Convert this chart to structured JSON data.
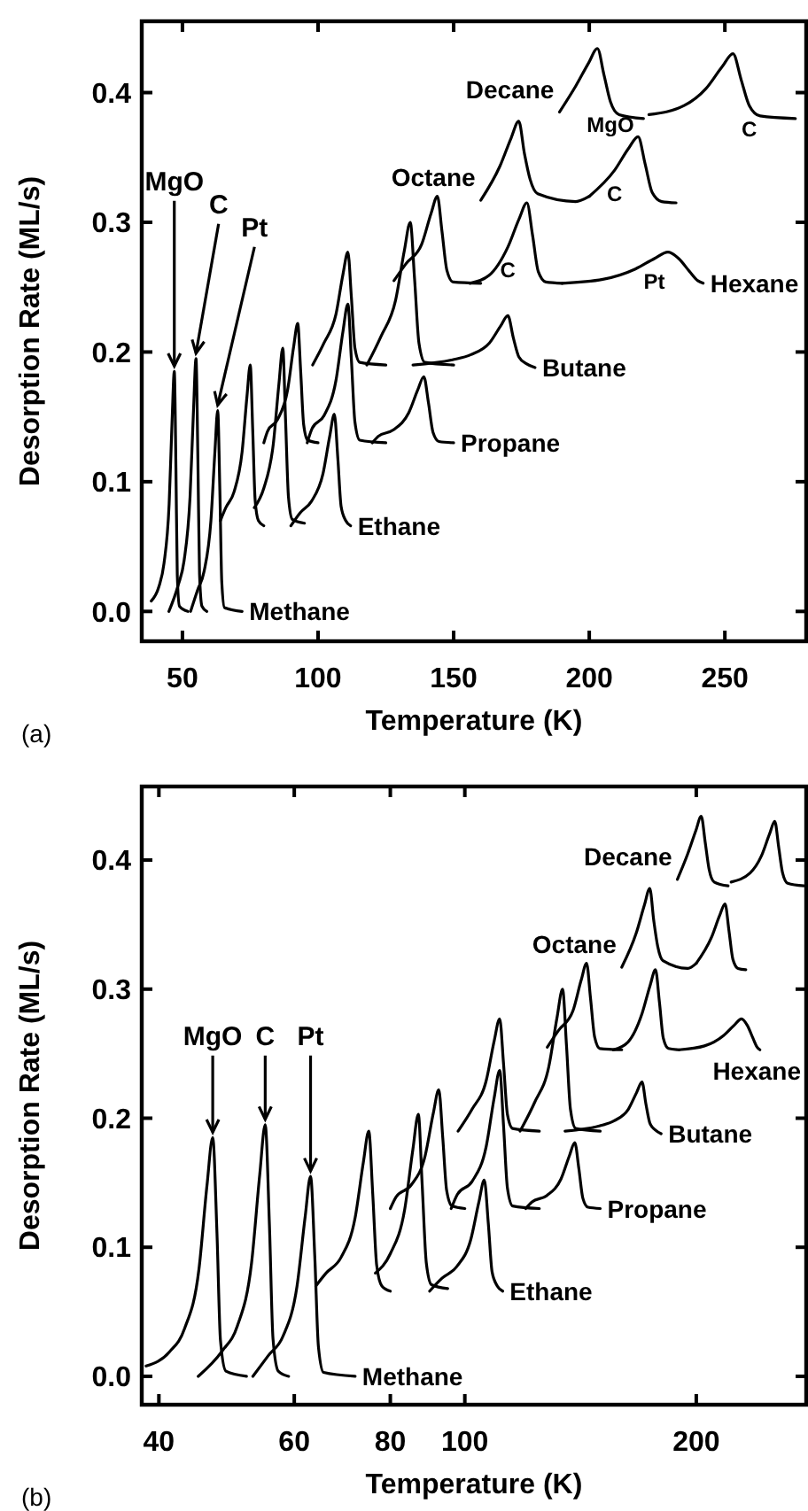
{
  "chart_data": [
    {
      "type": "line",
      "xlabel": "Temperature (K)",
      "ylabel": "Desorption Rate (ML/s)",
      "xlim": [
        35,
        280
      ],
      "xticks": [
        50,
        100,
        150,
        200,
        250
      ],
      "ylim": [
        -0.023,
        0.455
      ],
      "yticks": [
        {
          "value": 0,
          "label": "0.0"
        },
        0.1,
        0.2,
        0.3,
        0.4
      ],
      "annotations": [
        {
          "text": "MgO",
          "x": 47,
          "y": 0.185
        },
        {
          "text": "C",
          "x": 55,
          "y": 0.195
        },
        {
          "text": "Pt",
          "x": 63,
          "y": 0.155
        },
        {
          "text": "MgO",
          "x": 207.8,
          "y": 0.393
        },
        {
          "text": "C",
          "x": 259,
          "y": 0.39
        },
        {
          "text": "C",
          "x": 209.3,
          "y": 0.34
        },
        {
          "text": "C",
          "x": 170,
          "y": 0.281
        },
        {
          "text": "Pt",
          "x": 224,
          "y": 0.272
        },
        "(a)"
      ],
      "series": [
        {
          "color": "#000000",
          "x": [
            38.5,
            41.3,
            43.2,
            45.1,
            46.2,
            47,
            47.6,
            48.1,
            48.9,
            52
          ],
          "values": [
            0.008,
            0.019,
            0.037,
            0.083,
            0.148,
            0.185,
            0.111,
            0.028,
            0.004,
            0
          ]
        },
        {
          "color": "#000000",
          "x": [
            45,
            48.4,
            50.6,
            52.8,
            54.1,
            55,
            55.7,
            56.3,
            57.2,
            59
          ],
          "values": [
            0,
            0.02,
            0.039,
            0.088,
            0.156,
            0.195,
            0.117,
            0.029,
            0.004,
            0
          ]
        },
        {
          "name": "Methane",
          "color": "#000000",
          "x": [
            53,
            55.5,
            58,
            60.5,
            62,
            63,
            63.8,
            64.5,
            65.5,
            72
          ],
          "values": [
            0,
            0.016,
            0.031,
            0.07,
            0.124,
            0.155,
            0.093,
            0.023,
            0.003,
            0
          ]
        },
        {
          "color": "#000000",
          "x": [
            64,
            66,
            69,
            72,
            73.8,
            75,
            75.9,
            76.8,
            78,
            80
          ],
          "values": [
            0.07,
            0.08,
            0.092,
            0.123,
            0.166,
            0.19,
            0.141,
            0.086,
            0.07,
            0.066
          ]
        },
        {
          "color": "#000000",
          "x": [
            76.5,
            80,
            83.5,
            85.6,
            87,
            88,
            89.1,
            90.5,
            95
          ],
          "values": [
            0.08,
            0.095,
            0.129,
            0.176,
            0.203,
            0.149,
            0.088,
            0.071,
            0.068
          ]
        },
        {
          "name": "Ethane",
          "color": "#000000",
          "x": [
            90,
            93.4,
            97.6,
            101.8,
            104.3,
            106,
            107.3,
            108.5,
            110.2,
            112
          ],
          "values": [
            0.066,
            0.076,
            0.085,
            0.106,
            0.135,
            0.152,
            0.118,
            0.081,
            0.07,
            0.066
          ]
        },
        {
          "color": "#000000",
          "x": [
            80,
            81.4,
            85.1,
            88.8,
            91,
            92.5,
            93.6,
            94.7,
            96.2,
            100
          ],
          "values": [
            0.13,
            0.139,
            0.148,
            0.171,
            0.204,
            0.222,
            0.185,
            0.144,
            0.132,
            0.13
          ]
        },
        {
          "color": "#000000",
          "x": [
            96,
            97.8,
            102.2,
            106.6,
            109.2,
            111,
            112.3,
            113.6,
            115.4,
            125
          ],
          "values": [
            0.13,
            0.141,
            0.151,
            0.178,
            0.216,
            0.237,
            0.194,
            0.146,
            0.132,
            0.13
          ]
        },
        {
          "name": "Propane",
          "color": "#000000",
          "x": [
            120,
            122.2,
            127.8,
            133.4,
            136.8,
            139,
            140.7,
            142.4,
            144.6,
            150
          ],
          "values": [
            0.13,
            0.135,
            0.14,
            0.153,
            0.171,
            0.181,
            0.161,
            0.138,
            0.131,
            0.13
          ]
        },
        {
          "color": "#000000",
          "x": [
            98,
            102.2,
            106.6,
            109.2,
            111,
            112.3,
            113.6,
            115.4,
            125
          ],
          "values": [
            0.19,
            0.207,
            0.229,
            0.26,
            0.277,
            0.242,
            0.203,
            0.192,
            0.19
          ]
        },
        {
          "color": "#000000",
          "x": [
            118,
            123.2,
            128.6,
            131.8,
            134,
            135.6,
            137.2,
            139.4,
            150
          ],
          "values": [
            0.19,
            0.212,
            0.24,
            0.278,
            0.3,
            0.256,
            0.207,
            0.192,
            0.19
          ]
        },
        {
          "name": "Butane",
          "color": "#000000",
          "x": [
            135,
            149.6,
            156.4,
            163.2,
            167.3,
            170,
            172,
            174.1,
            176.8,
            180
          ],
          "values": [
            0.19,
            0.194,
            0.198,
            0.207,
            0.22,
            0.228,
            0.211,
            0.196,
            0.191,
            0.188
          ]
        },
        {
          "color": "#000000",
          "x": [
            128,
            132.4,
            138.2,
            141.7,
            144,
            145.7,
            147.5,
            149.8,
            160
          ],
          "values": [
            0.255,
            0.268,
            0.283,
            0.307,
            0.32,
            0.293,
            0.263,
            0.254,
            0.253
          ]
        },
        {
          "color": "#000000",
          "x": [
            156,
            163,
            170,
            174.2,
            177,
            179.1,
            181.2,
            184,
            190
          ],
          "values": [
            0.253,
            0.259,
            0.281,
            0.303,
            0.315,
            0.29,
            0.262,
            0.254,
            0.253
          ]
        },
        {
          "name": "Hexane",
          "color": "#000000",
          "x": [
            190,
            205,
            217,
            224,
            229,
            233,
            237,
            240,
            242
          ],
          "values": [
            0.253,
            0.256,
            0.264,
            0.272,
            0.277,
            0.272,
            0.262,
            0.255,
            0.253
          ]
        },
        {
          "name": "Octane",
          "color": "#000000",
          "x": [
            160,
            167,
            171.2,
            174,
            176.1,
            178.2,
            181,
            195,
            200
          ],
          "values": [
            0.317,
            0.343,
            0.365,
            0.378,
            0.353,
            0.333,
            0.322,
            0.316,
            0.32
          ]
        },
        {
          "color": "#000000",
          "x": [
            200,
            209.3,
            214.5,
            218,
            220.6,
            223.2,
            226.7,
            232
          ],
          "values": [
            0.32,
            0.34,
            0.357,
            0.366,
            0.345,
            0.323,
            0.316,
            0.315
          ]
        },
        {
          "name": "Decane",
          "color": "#000000",
          "x": [
            189,
            195,
            199.8,
            203,
            205.4,
            207.8,
            211,
            220
          ],
          "values": [
            0.385,
            0.405,
            0.423,
            0.434,
            0.414,
            0.393,
            0.383,
            0.38
          ]
        },
        {
          "color": "#000000",
          "x": [
            222,
            235,
            243,
            249,
            253,
            256,
            259,
            263,
            276
          ],
          "values": [
            0.383,
            0.39,
            0.403,
            0.42,
            0.43,
            0.41,
            0.39,
            0.382,
            0.38
          ]
        }
      ]
    },
    {
      "type": "line",
      "log": "x",
      "xlabel": "Temperature (K)",
      "ylabel": "Desorption Rate (ML/s)",
      "xlim": [
        38,
        278
      ],
      "xticks": [
        40,
        60,
        80,
        100,
        200
      ],
      "ylim": [
        -0.022,
        0.457
      ],
      "yticks": [
        {
          "value": 0,
          "label": "0.0"
        },
        0.1,
        0.2,
        0.3,
        0.4
      ],
      "annotations": [
        {
          "text": "MgO",
          "x": 47,
          "y": 0.185
        },
        {
          "text": "C",
          "x": 55,
          "y": 0.195
        },
        {
          "text": "Pt",
          "x": 63,
          "y": 0.155
        },
        "(b)"
      ],
      "series": [
        {
          "color": "#000000",
          "x": [
            38.5,
            41.3,
            43.2,
            45.1,
            46.2,
            47,
            47.6,
            48.1,
            48.9,
            52
          ],
          "values": [
            0.008,
            0.019,
            0.037,
            0.083,
            0.148,
            0.185,
            0.111,
            0.028,
            0.004,
            0
          ]
        },
        {
          "color": "#000000",
          "x": [
            45,
            48.4,
            50.6,
            52.8,
            54.1,
            55,
            55.7,
            56.3,
            57.2,
            59
          ],
          "values": [
            0,
            0.02,
            0.039,
            0.088,
            0.156,
            0.195,
            0.117,
            0.029,
            0.004,
            0
          ]
        },
        {
          "name": "Methane",
          "color": "#000000",
          "x": [
            53,
            55.5,
            58,
            60.5,
            62,
            63,
            63.8,
            64.5,
            65.5,
            72
          ],
          "values": [
            0,
            0.016,
            0.031,
            0.07,
            0.124,
            0.155,
            0.093,
            0.023,
            0.003,
            0
          ]
        },
        {
          "color": "#000000",
          "x": [
            64,
            66,
            69,
            72,
            73.8,
            75,
            75.9,
            76.8,
            78,
            80
          ],
          "values": [
            0.07,
            0.08,
            0.092,
            0.123,
            0.166,
            0.19,
            0.141,
            0.086,
            0.07,
            0.066
          ]
        },
        {
          "color": "#000000",
          "x": [
            76.5,
            80,
            83.5,
            85.6,
            87,
            88,
            89.1,
            90.5,
            95
          ],
          "values": [
            0.08,
            0.095,
            0.129,
            0.176,
            0.203,
            0.149,
            0.088,
            0.071,
            0.068
          ]
        },
        {
          "name": "Ethane",
          "color": "#000000",
          "x": [
            90,
            93.4,
            97.6,
            101.8,
            104.3,
            106,
            107.3,
            108.5,
            110.2,
            112
          ],
          "values": [
            0.066,
            0.076,
            0.085,
            0.106,
            0.135,
            0.152,
            0.118,
            0.081,
            0.07,
            0.066
          ]
        },
        {
          "color": "#000000",
          "x": [
            80,
            81.4,
            85.1,
            88.8,
            91,
            92.5,
            93.6,
            94.7,
            96.2,
            100
          ],
          "values": [
            0.13,
            0.139,
            0.148,
            0.171,
            0.204,
            0.222,
            0.185,
            0.144,
            0.132,
            0.13
          ]
        },
        {
          "color": "#000000",
          "x": [
            96,
            97.8,
            102.2,
            106.6,
            109.2,
            111,
            112.3,
            113.6,
            115.4,
            125
          ],
          "values": [
            0.13,
            0.141,
            0.151,
            0.178,
            0.216,
            0.237,
            0.194,
            0.146,
            0.132,
            0.13
          ]
        },
        {
          "name": "Propane",
          "color": "#000000",
          "x": [
            120,
            122.2,
            127.8,
            133.4,
            136.8,
            139,
            140.7,
            142.4,
            144.6,
            150
          ],
          "values": [
            0.13,
            0.135,
            0.14,
            0.153,
            0.171,
            0.181,
            0.161,
            0.138,
            0.131,
            0.13
          ]
        },
        {
          "color": "#000000",
          "x": [
            98,
            102.2,
            106.6,
            109.2,
            111,
            112.3,
            113.6,
            115.4,
            125
          ],
          "values": [
            0.19,
            0.207,
            0.229,
            0.26,
            0.277,
            0.242,
            0.203,
            0.192,
            0.19
          ]
        },
        {
          "color": "#000000",
          "x": [
            118,
            123.2,
            128.6,
            131.8,
            134,
            135.6,
            137.2,
            139.4,
            150
          ],
          "values": [
            0.19,
            0.212,
            0.24,
            0.278,
            0.3,
            0.256,
            0.207,
            0.192,
            0.19
          ]
        },
        {
          "name": "Butane",
          "color": "#000000",
          "x": [
            135,
            149.6,
            156.4,
            163.2,
            167.3,
            170,
            172,
            174.1,
            176.8,
            180
          ],
          "values": [
            0.19,
            0.194,
            0.198,
            0.207,
            0.22,
            0.228,
            0.211,
            0.196,
            0.191,
            0.188
          ]
        },
        {
          "color": "#000000",
          "x": [
            128,
            132.4,
            138.2,
            141.7,
            144,
            145.7,
            147.5,
            149.8,
            160
          ],
          "values": [
            0.255,
            0.268,
            0.283,
            0.307,
            0.32,
            0.293,
            0.263,
            0.254,
            0.253
          ]
        },
        {
          "color": "#000000",
          "x": [
            156,
            163,
            170,
            174.2,
            177,
            179.1,
            181.2,
            184,
            190
          ],
          "values": [
            0.253,
            0.259,
            0.281,
            0.303,
            0.315,
            0.29,
            0.262,
            0.254,
            0.253
          ]
        },
        {
          "name": "Hexane",
          "color": "#000000",
          "x": [
            190,
            205,
            217,
            224,
            229,
            233,
            237,
            240,
            242
          ],
          "values": [
            0.253,
            0.256,
            0.264,
            0.272,
            0.277,
            0.272,
            0.262,
            0.255,
            0.253
          ]
        },
        {
          "name": "Octane",
          "color": "#000000",
          "x": [
            160,
            167,
            171.2,
            174,
            176.1,
            178.2,
            181,
            195,
            200
          ],
          "values": [
            0.317,
            0.343,
            0.365,
            0.378,
            0.353,
            0.333,
            0.322,
            0.316,
            0.32
          ]
        },
        {
          "color": "#000000",
          "x": [
            200,
            209.3,
            214.5,
            218,
            220.6,
            223.2,
            226.7,
            232
          ],
          "values": [
            0.32,
            0.34,
            0.357,
            0.366,
            0.345,
            0.323,
            0.316,
            0.315
          ]
        },
        {
          "name": "Decane",
          "color": "#000000",
          "x": [
            189,
            195,
            199.8,
            203,
            205.4,
            207.8,
            211,
            220
          ],
          "values": [
            0.385,
            0.405,
            0.423,
            0.434,
            0.414,
            0.393,
            0.383,
            0.38
          ]
        },
        {
          "color": "#000000",
          "x": [
            222,
            235,
            243,
            249,
            253,
            256,
            259,
            263,
            276
          ],
          "values": [
            0.383,
            0.39,
            0.403,
            0.42,
            0.43,
            0.41,
            0.39,
            0.382,
            0.38
          ]
        }
      ]
    }
  ]
}
